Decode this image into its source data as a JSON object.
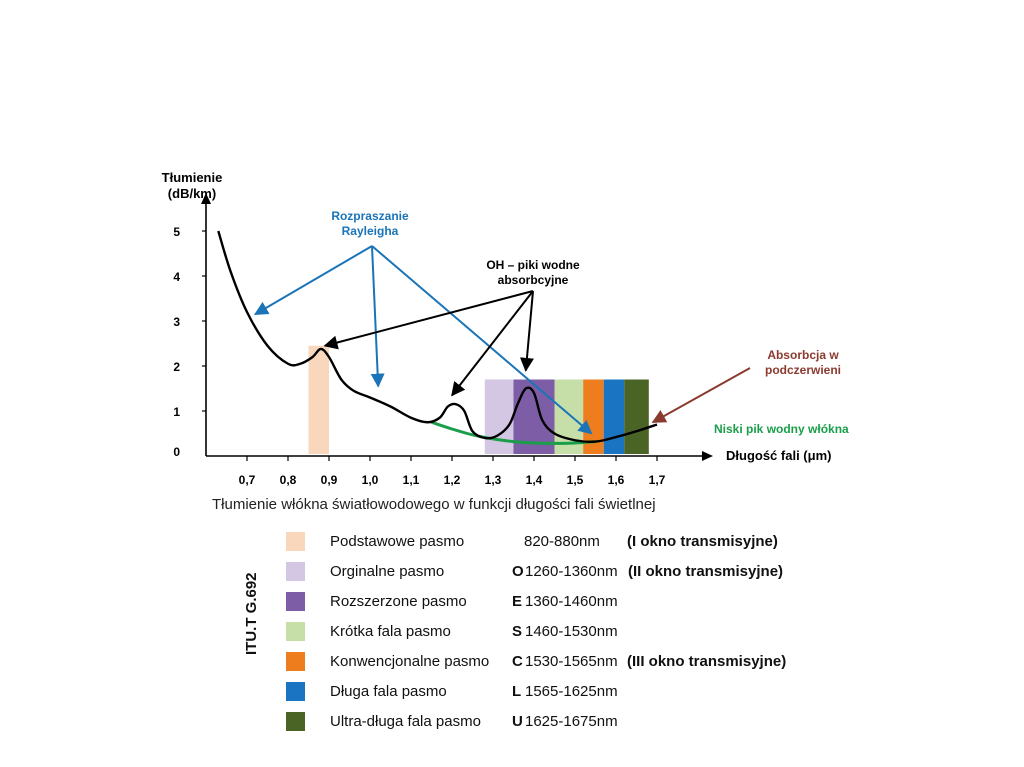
{
  "chart_data": {
    "type": "line",
    "ylabel": [
      "Tłumienie",
      "(dB/km)"
    ],
    "xlabel": "Długość fali (μm)",
    "caption": "Tłumienie włókna światłowodowego w funkcji długości fali świetlnej",
    "xlim": [
      0.6,
      1.72
    ],
    "ylim": [
      0,
      5.5
    ],
    "x_ticks": [
      "0,7",
      "0,8",
      "0,9",
      "1,0",
      "1,1",
      "1,2",
      "1,3",
      "1,4",
      "1,5",
      "1,6",
      "1,7"
    ],
    "y_ticks": [
      "0",
      "1",
      "2",
      "3",
      "4",
      "5"
    ],
    "series": [
      {
        "name": "Tłumienie",
        "color": "#000000",
        "x": [
          0.63,
          0.66,
          0.7,
          0.75,
          0.8,
          0.83,
          0.86,
          0.88,
          0.9,
          0.93,
          0.96,
          1.0,
          1.05,
          1.1,
          1.14,
          1.17,
          1.19,
          1.21,
          1.23,
          1.25,
          1.28,
          1.31,
          1.34,
          1.36,
          1.38,
          1.4,
          1.42,
          1.45,
          1.5,
          1.55,
          1.6,
          1.65,
          1.7
        ],
        "y": [
          5.0,
          4.1,
          3.2,
          2.45,
          2.05,
          2.05,
          2.2,
          2.38,
          2.2,
          1.7,
          1.45,
          1.3,
          1.1,
          0.85,
          0.75,
          0.85,
          1.1,
          1.15,
          1.0,
          0.55,
          0.4,
          0.45,
          0.7,
          1.15,
          1.5,
          1.4,
          0.8,
          0.5,
          0.35,
          0.32,
          0.42,
          0.55,
          0.7
        ]
      },
      {
        "name": "Niski pik wodny włókna",
        "color": "#1a9e4a",
        "x": [
          1.15,
          1.2,
          1.25,
          1.3,
          1.35,
          1.4,
          1.45,
          1.5,
          1.55
        ],
        "y": [
          0.75,
          0.6,
          0.47,
          0.38,
          0.32,
          0.29,
          0.28,
          0.29,
          0.32
        ]
      }
    ],
    "bands": [
      {
        "name": "Podstawowe pasmo",
        "code": "",
        "range": "820-880nm",
        "window": "(I okno transmisyjne)",
        "x_from": 0.85,
        "x_to": 0.9,
        "height": 2.45,
        "color": "#f8d7bd"
      },
      {
        "name": "Orginalne pasmo",
        "code": "O",
        "range": "1260-1360nm",
        "window": "(II okno transmisyjne)",
        "x_from": 1.28,
        "x_to": 1.35,
        "height": 1.7,
        "color": "#d3c7e3"
      },
      {
        "name": "Rozszerzone pasmo",
        "code": "E",
        "range": "1360-1460nm",
        "window": "",
        "x_from": 1.35,
        "x_to": 1.45,
        "height": 1.7,
        "color": "#7d5ea6"
      },
      {
        "name": "Krótka fala pasmo",
        "code": "S",
        "range": "1460-1530nm",
        "window": "",
        "x_from": 1.45,
        "x_to": 1.52,
        "height": 1.7,
        "color": "#c6dfa9"
      },
      {
        "name": "Konwencjonalne pasmo",
        "code": "C",
        "range": "1530-1565nm",
        "window": "(III okno transmisyjne)",
        "x_from": 1.52,
        "x_to": 1.57,
        "height": 1.7,
        "color": "#ee7d1e"
      },
      {
        "name": "Długa fala pasmo",
        "code": "L",
        "range": "1565-1625nm",
        "window": "",
        "x_from": 1.57,
        "x_to": 1.62,
        "height": 1.7,
        "color": "#1a74c1"
      },
      {
        "name": "Ultra-długa fala pasmo",
        "code": "U",
        "range": "1625-1675nm",
        "window": "",
        "x_from": 1.62,
        "x_to": 1.68,
        "height": 1.7,
        "color": "#4a6426"
      }
    ],
    "annotations": [
      {
        "id": "rayleigh",
        "text": [
          "Rozpraszanie",
          "Rayleigha"
        ],
        "color": "#1a74b8",
        "arrows_to": [
          [
            0.72,
            3.15
          ],
          [
            1.02,
            1.55
          ],
          [
            1.54,
            0.5
          ]
        ]
      },
      {
        "id": "oh",
        "text": [
          "OH – piki wodne",
          "absorbcyjne"
        ],
        "color": "#000000",
        "arrows_to": [
          [
            0.89,
            2.45
          ],
          [
            1.2,
            1.35
          ],
          [
            1.38,
            1.9
          ]
        ]
      },
      {
        "id": "ir",
        "text": [
          "Absorbcja w",
          "podczerwieni"
        ],
        "color": "#8b3a2f",
        "arrows_to": [
          [
            1.69,
            0.75
          ]
        ]
      },
      {
        "id": "lowwater",
        "text": [
          "Niski pik wodny włókna"
        ],
        "color": "#1a9e4a",
        "arrows_to": []
      }
    ]
  },
  "legend": {
    "standard": "ITU.T G.692"
  }
}
